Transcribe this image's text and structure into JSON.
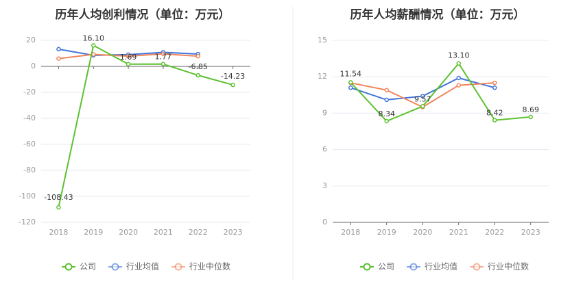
{
  "colors": {
    "company": "#5cc12f",
    "industry_avg": "#3f74d9",
    "industry_median": "#f0855c"
  },
  "legend": [
    {
      "key": "company",
      "label": "公司"
    },
    {
      "key": "industry_avg",
      "label": "行业均值"
    },
    {
      "key": "industry_median",
      "label": "行业中位数"
    }
  ],
  "chart_data": [
    {
      "type": "line",
      "title": "历年人均创利情况（单位：万元）",
      "categories": [
        "2018",
        "2019",
        "2020",
        "2021",
        "2022",
        "2023"
      ],
      "ylim": [
        -120,
        20
      ],
      "yticks": [
        20,
        0,
        -20,
        -40,
        -60,
        -80,
        -100,
        -120
      ],
      "grid": true,
      "legend_position": "bottom",
      "series": [
        {
          "name": "公司",
          "key": "company",
          "values": [
            -108.43,
            16.1,
            1.69,
            1.77,
            -6.85,
            -14.23
          ],
          "labels": [
            "-108.43",
            "16.10",
            "1.69",
            "1.77",
            "-6.85",
            "-14.23"
          ]
        },
        {
          "name": "行业均值",
          "key": "industry_avg",
          "values": [
            13.2,
            8.5,
            9.0,
            10.8,
            9.5,
            null
          ]
        },
        {
          "name": "行业中位数",
          "key": "industry_median",
          "values": [
            6.0,
            9.2,
            7.8,
            9.6,
            7.8,
            null
          ]
        }
      ]
    },
    {
      "type": "line",
      "title": "历年人均薪酬情况（单位：万元）",
      "categories": [
        "2018",
        "2019",
        "2020",
        "2021",
        "2022",
        "2023"
      ],
      "ylim": [
        0,
        15
      ],
      "yticks": [
        15,
        12,
        9,
        6,
        3,
        0
      ],
      "grid": true,
      "legend_position": "bottom",
      "series": [
        {
          "name": "公司",
          "key": "company",
          "values": [
            11.54,
            8.34,
            9.57,
            13.1,
            8.42,
            8.69
          ],
          "labels": [
            "11.54",
            "8.34",
            "9.57",
            "13.10",
            "8.42",
            "8.69"
          ]
        },
        {
          "name": "行业均值",
          "key": "industry_avg",
          "values": [
            11.1,
            10.1,
            10.4,
            11.9,
            11.1,
            null
          ]
        },
        {
          "name": "行业中位数",
          "key": "industry_median",
          "values": [
            11.5,
            10.9,
            9.5,
            11.3,
            11.5,
            null
          ]
        }
      ]
    }
  ]
}
